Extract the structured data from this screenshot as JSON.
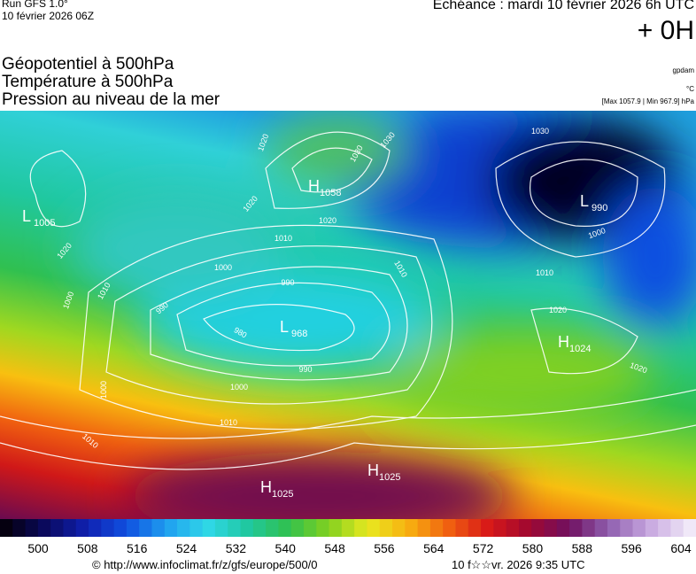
{
  "header": {
    "run": "Run GFS 1.0°",
    "run_date": "10 février 2026 06Z",
    "echeance": "Echéance : mardi 10 février 2026 6h UTC",
    "lead": "+ 0H",
    "titles": [
      "Géopotentiel à 500hPa",
      "Température à 500hPa",
      "Pression au niveau de la mer"
    ],
    "unit_geo": "gpdam",
    "unit_temp": "°C",
    "pressure_range": "[Max 1057.9 | Min 967.9] hPa"
  },
  "map": {
    "centers": [
      {
        "letter": "L",
        "value": "1005"
      },
      {
        "letter": "H",
        "value": "1058"
      },
      {
        "letter": "L",
        "value": "990"
      },
      {
        "letter": "L",
        "value": "968"
      },
      {
        "letter": "H",
        "value": "1024"
      },
      {
        "letter": "H",
        "value": "1025"
      },
      {
        "letter": "H",
        "value": "1025"
      }
    ],
    "isobar_labels": [
      "1020",
      "1030",
      "1030",
      "1020",
      "1010",
      "1010",
      "1000",
      "990",
      "990",
      "980",
      "990",
      "1000",
      "1000",
      "1010",
      "1010",
      "1020",
      "1020",
      "1030",
      "1020",
      "1000",
      "1010",
      "1000",
      "1020",
      "1010"
    ]
  },
  "colorbar": {
    "ticks": [
      500,
      508,
      516,
      524,
      532,
      540,
      548,
      556,
      564,
      572,
      580,
      588,
      596,
      604
    ],
    "colors": [
      "#050010",
      "#0a0a60",
      "#1020b0",
      "#1050e0",
      "#20a0f0",
      "#30d8e8",
      "#20c8a0",
      "#30c050",
      "#80d020",
      "#e8e820",
      "#f8b010",
      "#f06010",
      "#d81818",
      "#a00830",
      "#701060",
      "#9060b0",
      "#c8a8e0",
      "#f0e8f8"
    ]
  },
  "footer": {
    "url": "© http://www.infoclimat.fr/z/gfs/europe/500/0",
    "date": "10 f☆☆vr. 2026  9:35 UTC"
  }
}
